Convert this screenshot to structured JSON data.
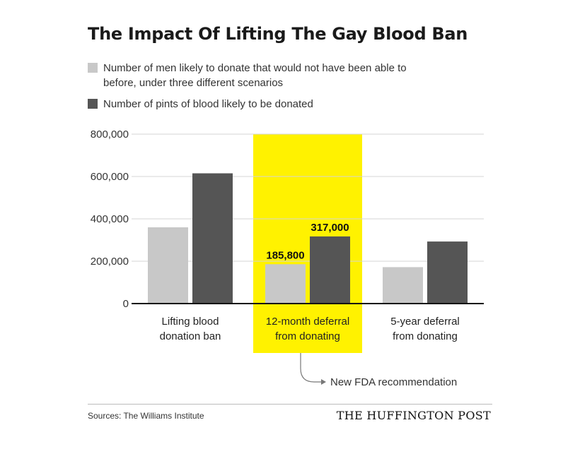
{
  "title": "The Impact Of Lifting The Gay Blood Ban",
  "legend": [
    {
      "label": "Number of men likely to donate that would not have been able to before, under three different scenarios",
      "color": "#c8c8c8"
    },
    {
      "label": "Number of pints of blood likely to be donated",
      "color": "#555555"
    }
  ],
  "chart_data": {
    "type": "bar",
    "categories": [
      [
        "Lifting blood",
        "donation ban"
      ],
      [
        "12-month deferral",
        "from donating"
      ],
      [
        "5-year deferral",
        "from donating"
      ]
    ],
    "series": [
      {
        "name": "Number of men likely to donate that would not have been able to before, under three different scenarios",
        "values": [
          360000,
          185800,
          172000
        ],
        "color": "#c8c8c8"
      },
      {
        "name": "Number of pints of blood likely to be donated",
        "values": [
          615000,
          317000,
          293000
        ],
        "color": "#555555"
      }
    ],
    "ylim": [
      0,
      800000
    ],
    "yticks": [
      0,
      200000,
      400000,
      600000,
      800000
    ],
    "ytick_labels": [
      "0",
      "200,000",
      "400,000",
      "600,000",
      "800,000"
    ],
    "highlight_category": 1,
    "highlight_color": "#fff200",
    "data_labels": [
      {
        "category": 1,
        "series": 0,
        "text": "185,800"
      },
      {
        "category": 1,
        "series": 1,
        "text": "317,000"
      }
    ],
    "grid": true
  },
  "annotation": "New FDA recommendation",
  "source": "Sources: The Williams Institute",
  "brand": "THE HUFFINGTON POST"
}
